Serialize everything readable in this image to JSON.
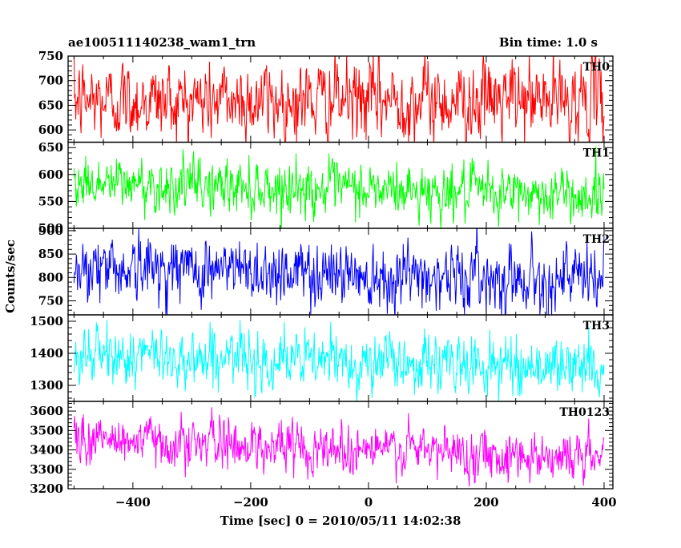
{
  "chart_data": {
    "type": "line",
    "title": "ae100511140238_wam1_trn",
    "subtitle": "Bin time: 1.0 s",
    "xlabel": "Time [sec] 0 = 2010/05/11 14:02:38",
    "ylabel": "Counts/sec",
    "xlim": [
      -510,
      415
    ],
    "x_ticks": [
      -400,
      -200,
      0,
      200,
      400
    ],
    "x_tick_labels": [
      "−400",
      "−200",
      "0",
      "200",
      "400"
    ],
    "data_x_range": [
      -500,
      400
    ],
    "bin_time_s": 1.0,
    "grid": false,
    "panels": [
      {
        "name": "TH0",
        "color": "#ff0000",
        "ylim": [
          575,
          750
        ],
        "y_ticks": [
          600,
          650,
          700,
          750
        ],
        "y_tick_labels": [
          "600",
          "650",
          "700",
          "750"
        ],
        "mean": 660,
        "trend": 0,
        "noise_sd": 40
      },
      {
        "name": "TH1",
        "color": "#00ff00",
        "ylim": [
          500,
          660
        ],
        "y_ticks": [
          500,
          550,
          600,
          650
        ],
        "y_tick_labels": [
          "500",
          "550",
          "600",
          "650"
        ],
        "mean": 585,
        "trend": -25,
        "noise_sd": 25
      },
      {
        "name": "TH2",
        "color": "#0000ff",
        "ylim": [
          720,
          905
        ],
        "y_ticks": [
          750,
          800,
          850,
          900
        ],
        "y_tick_labels": [
          "750",
          "800",
          "850",
          "900"
        ],
        "mean": 825,
        "trend": -30,
        "noise_sd": 35
      },
      {
        "name": "TH3",
        "color": "#00ffff",
        "ylim": [
          1250,
          1520
        ],
        "y_ticks": [
          1300,
          1400,
          1500
        ],
        "y_tick_labels": [
          "1300",
          "1400",
          "1500"
        ],
        "mean": 1395,
        "trend": -40,
        "noise_sd": 45
      },
      {
        "name": "TH0123",
        "color": "#ff00ff",
        "ylim": [
          3200,
          3650
        ],
        "y_ticks": [
          3200,
          3300,
          3400,
          3500,
          3600
        ],
        "y_tick_labels": [
          "3200",
          "3300",
          "3400",
          "3500",
          "3600"
        ],
        "mean": 3460,
        "trend": -100,
        "noise_sd": 65
      }
    ]
  }
}
